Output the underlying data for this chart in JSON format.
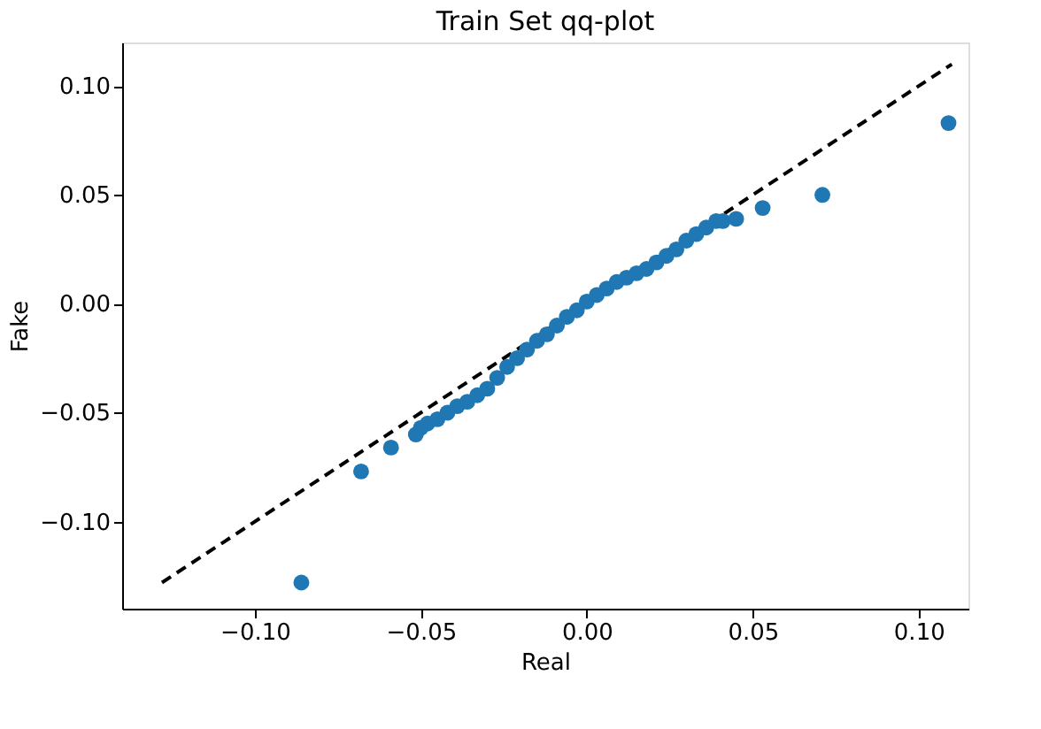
{
  "chart_data": {
    "type": "scatter",
    "title": "Train Set qq-plot",
    "xlabel": "Real",
    "ylabel": "Fake",
    "xlim": [
      -0.14,
      0.115
    ],
    "ylim": [
      -0.14,
      0.12
    ],
    "xticks": [
      {
        "value": -0.1,
        "label": "−0.10"
      },
      {
        "value": -0.05,
        "label": "−0.05"
      },
      {
        "value": 0,
        "label": "0.00"
      },
      {
        "value": 0.05,
        "label": "0.05"
      },
      {
        "value": 0.1,
        "label": "0.10"
      }
    ],
    "yticks": [
      {
        "value": -0.1,
        "label": "−0.10"
      },
      {
        "value": -0.05,
        "label": "−0.05"
      },
      {
        "value": 0,
        "label": "0.00"
      },
      {
        "value": 0.05,
        "label": "0.05"
      },
      {
        "value": 0.1,
        "label": "0.10"
      }
    ],
    "grid": false,
    "series": [
      {
        "color": "#1f77b4",
        "marker": "circle",
        "x": [
          -0.086,
          -0.068,
          -0.059,
          -0.0515,
          -0.05,
          -0.048,
          -0.045,
          -0.042,
          -0.039,
          -0.036,
          -0.033,
          -0.03,
          -0.027,
          -0.024,
          -0.021,
          -0.018,
          -0.015,
          -0.012,
          -0.009,
          -0.006,
          -0.003,
          0.0,
          0.003,
          0.006,
          0.009,
          0.012,
          0.015,
          0.018,
          0.021,
          0.024,
          0.027,
          0.03,
          0.033,
          0.036,
          0.039,
          0.041,
          0.045,
          0.053,
          0.071,
          0.109
        ],
        "values": [
          -0.128,
          -0.077,
          -0.066,
          -0.06,
          -0.057,
          -0.055,
          -0.053,
          -0.05,
          -0.047,
          -0.045,
          -0.042,
          -0.039,
          -0.034,
          -0.029,
          -0.025,
          -0.021,
          -0.017,
          -0.014,
          -0.01,
          -0.006,
          -0.003,
          0.001,
          0.004,
          0.007,
          0.01,
          0.012,
          0.014,
          0.016,
          0.019,
          0.022,
          0.025,
          0.029,
          0.032,
          0.035,
          0.038,
          0.038,
          0.039,
          0.044,
          0.05,
          0.083
        ]
      },
      {
        "type": "line",
        "color": "#000000",
        "line_style": "dashed",
        "marker": "none",
        "x": [
          -0.128,
          0.11
        ],
        "values": [
          -0.128,
          0.11
        ]
      }
    ]
  }
}
